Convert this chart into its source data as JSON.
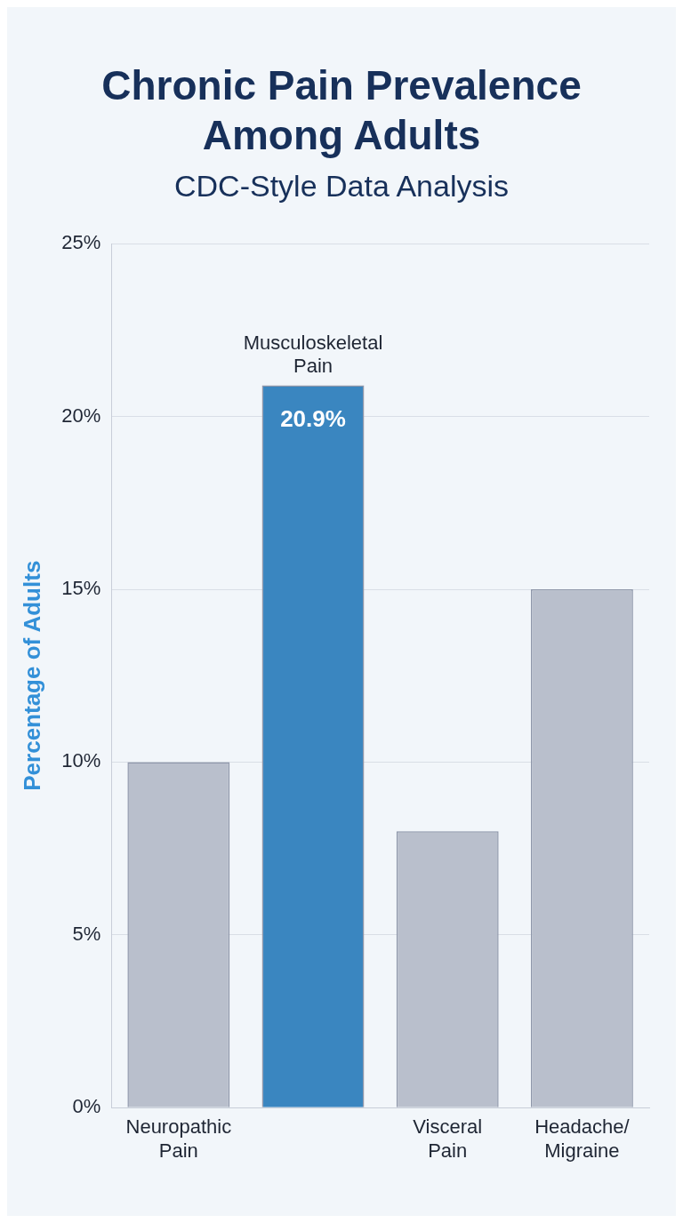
{
  "chart_data": {
    "type": "bar",
    "title": "Chronic Pain Prevalence Among Adults",
    "subtitle": "CDC-Style Data Analysis",
    "ylabel": "Percentage of Adults",
    "categories": [
      "Neuropathic Pain",
      "Musculoskeletal Pain",
      "Visceral Pain",
      "Headache/ Migraine"
    ],
    "values": [
      10,
      20.9,
      8,
      15
    ],
    "colors": [
      "#b9bfcc",
      "#3a86c0",
      "#b9bfcc",
      "#b9bfcc"
    ],
    "value_labels": [
      null,
      "20.9%",
      null,
      null
    ],
    "ylim": [
      0,
      25
    ],
    "yticks": [
      {
        "value": 0,
        "label": "0%"
      },
      {
        "value": 5,
        "label": "5%"
      },
      {
        "value": 10,
        "label": "10%"
      },
      {
        "value": 15,
        "label": "15%"
      },
      {
        "value": 20,
        "label": "20%"
      },
      {
        "value": 25,
        "label": "25%"
      }
    ],
    "grid": "y",
    "legend": false
  }
}
